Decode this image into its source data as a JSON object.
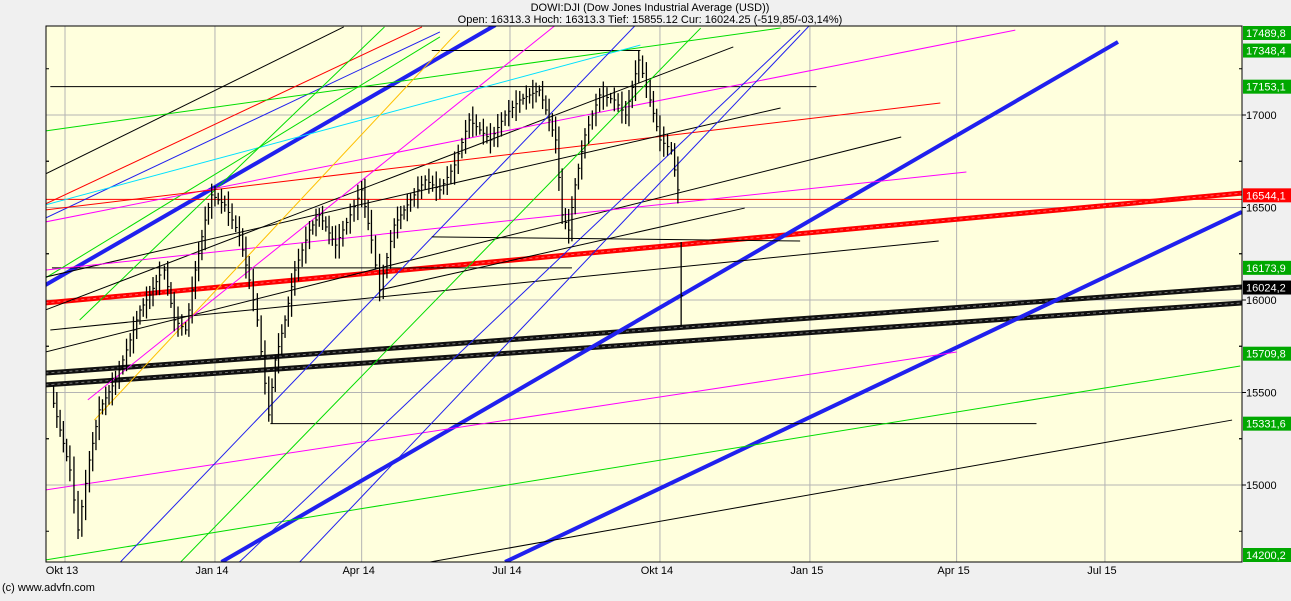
{
  "header": {
    "title": "DOWI:DJI (Dow Jones Industrial Average (USD))",
    "quote": "Open: 16313.3 Hoch: 16313.3 Tief: 15855.12 Cur: 16024.25 (-519,85/-03,14%)"
  },
  "footer": {
    "copyright": "(c) www.advfn.com"
  },
  "colors": {
    "background": "#f0f0f0",
    "plot": "#ffffdd",
    "grid": "#b4b4b4",
    "badge_green": "#00a800",
    "badge_red": "#ff0000",
    "badge_black": "#000000"
  },
  "chart_data": {
    "type": "ohlc",
    "title": "DOWI:DJI (Dow Jones Industrial Average (USD))",
    "ylim": [
      14584,
      17476
    ],
    "xlim": [
      "2013-09-19",
      "2015-09-23"
    ],
    "grid": true,
    "y_ticks": [
      15000,
      15500,
      16000,
      16500,
      17000
    ],
    "x_ticks": [
      {
        "date": "2013-10-01",
        "label": "Okt 13"
      },
      {
        "date": "2014-01-01",
        "label": "Jan 14"
      },
      {
        "date": "2014-04-01",
        "label": "Apr 14"
      },
      {
        "date": "2014-07-01",
        "label": "Jul 14"
      },
      {
        "date": "2014-10-01",
        "label": "Okt 14"
      },
      {
        "date": "2015-01-01",
        "label": "Jan 15"
      },
      {
        "date": "2015-04-01",
        "label": "Apr 15"
      },
      {
        "date": "2015-07-01",
        "label": "Jul 15"
      }
    ],
    "last_bar": {
      "date": "2014-10-14",
      "open": 16313.3,
      "high": 16313.3,
      "low": 15855.12,
      "close": 16024.25,
      "change": "-519,85",
      "change_pct": "-03,14%"
    },
    "closes": [
      [
        "2013-09-22",
        15514
      ],
      [
        "2013-09-28",
        15297
      ],
      [
        "2013-10-04",
        15081
      ],
      [
        "2013-10-09",
        14757
      ],
      [
        "2013-10-16",
        15135
      ],
      [
        "2013-10-22",
        15406
      ],
      [
        "2013-11-01",
        15568
      ],
      [
        "2013-11-10",
        15784
      ],
      [
        "2013-11-16",
        15946
      ],
      [
        "2013-11-22",
        16027
      ],
      [
        "2013-11-28",
        16135
      ],
      [
        "2013-12-01",
        16162
      ],
      [
        "2013-12-07",
        15892
      ],
      [
        "2013-12-14",
        15838
      ],
      [
        "2013-12-20",
        16162
      ],
      [
        "2013-12-26",
        16432
      ],
      [
        "2013-12-30",
        16568
      ],
      [
        "2014-01-07",
        16514
      ],
      [
        "2014-01-16",
        16351
      ],
      [
        "2014-01-22",
        16108
      ],
      [
        "2014-01-27",
        15892
      ],
      [
        "2014-02-03",
        15379
      ],
      [
        "2014-02-07",
        15676
      ],
      [
        "2014-02-13",
        15892
      ],
      [
        "2014-02-19",
        16162
      ],
      [
        "2014-02-28",
        16378
      ],
      [
        "2014-03-06",
        16460
      ],
      [
        "2014-03-16",
        16297
      ],
      [
        "2014-03-25",
        16460
      ],
      [
        "2014-04-01",
        16595
      ],
      [
        "2014-04-07",
        16324
      ],
      [
        "2014-04-12",
        16054
      ],
      [
        "2014-04-21",
        16405
      ],
      [
        "2014-05-01",
        16541
      ],
      [
        "2014-05-10",
        16649
      ],
      [
        "2014-05-19",
        16595
      ],
      [
        "2014-05-28",
        16730
      ],
      [
        "2014-06-06",
        16973
      ],
      [
        "2014-06-19",
        16865
      ],
      [
        "2014-06-28",
        17000
      ],
      [
        "2014-07-07",
        17081
      ],
      [
        "2014-07-19",
        17135
      ],
      [
        "2014-07-29",
        16865
      ],
      [
        "2014-08-02",
        16460
      ],
      [
        "2014-08-06",
        16378
      ],
      [
        "2014-08-10",
        16622
      ],
      [
        "2014-08-16",
        16892
      ],
      [
        "2014-08-25",
        17108
      ],
      [
        "2014-09-03",
        17081
      ],
      [
        "2014-09-10",
        17000
      ],
      [
        "2014-09-18",
        17297
      ],
      [
        "2014-09-25",
        17081
      ],
      [
        "2014-10-01",
        16865
      ],
      [
        "2014-10-08",
        16811
      ],
      [
        "2014-10-12",
        16595
      ],
      [
        "2014-10-14",
        16024
      ]
    ],
    "trend_lines": [
      {
        "color": "#ff0000",
        "width": 5,
        "from": [
          "2013-09-19",
          15984
        ],
        "to": [
          "2015-09-23",
          16578
        ]
      },
      {
        "color": "#111111",
        "width": 5,
        "from": [
          "2013-09-19",
          15605
        ],
        "to": [
          "2015-09-23",
          16070
        ]
      },
      {
        "color": "#111111",
        "width": 5,
        "from": [
          "2013-09-19",
          15541
        ],
        "to": [
          "2015-09-23",
          15984
        ]
      },
      {
        "color": "#2020ee",
        "width": 4,
        "from": [
          "2013-09-19",
          16081
        ],
        "to": [
          "2014-06-22",
          17486
        ]
      },
      {
        "color": "#2020ee",
        "width": 4,
        "from": [
          "2014-01-05",
          14584
        ],
        "to": [
          "2015-07-09",
          17395
        ]
      },
      {
        "color": "#2020ee",
        "width": 4,
        "from": [
          "2014-06-28",
          14584
        ],
        "to": [
          "2015-09-23",
          16476
        ]
      },
      {
        "color": "#ff0000",
        "width": 1,
        "from": [
          "2013-09-19",
          16544.1
        ],
        "to": [
          "2015-09-23",
          16544.1
        ]
      },
      {
        "color": "#000000",
        "width": 1,
        "from": [
          "2013-09-22",
          17153.1
        ],
        "to": [
          "2015-01-05",
          17153.1
        ]
      },
      {
        "color": "#000000",
        "width": 1,
        "from": [
          "2014-05-14",
          17348.4
        ],
        "to": [
          "2014-09-19",
          17348.4
        ]
      },
      {
        "color": "#000000",
        "width": 1,
        "from": [
          "2013-09-23",
          16173.9
        ],
        "to": [
          "2014-08-08",
          16173.9
        ]
      },
      {
        "color": "#000000",
        "width": 1,
        "from": [
          "2014-02-04",
          15331.6
        ],
        "to": [
          "2015-05-20",
          15331.6
        ]
      },
      {
        "color": "#000000",
        "width": 1,
        "from": [
          "2013-09-19",
          16681
        ],
        "to": [
          "2014-03-21",
          17476
        ]
      },
      {
        "color": "#ff0000",
        "width": 1,
        "from": [
          "2013-09-19",
          16519
        ],
        "to": [
          "2014-05-08",
          17476
        ]
      },
      {
        "color": "#2020ee",
        "width": 1,
        "from": [
          "2013-09-19",
          16443
        ],
        "to": [
          "2014-05-19",
          17449
        ]
      },
      {
        "color": "#00dd00",
        "width": 1,
        "from": [
          "2013-09-19",
          16914
        ],
        "to": [
          "2014-12-14",
          17470
        ]
      },
      {
        "color": "#00e0ff",
        "width": 1,
        "from": [
          "2013-09-19",
          16514
        ],
        "to": [
          "2014-09-19",
          17378
        ]
      },
      {
        "color": "#00dd00",
        "width": 1,
        "from": [
          "2013-10-10",
          15892
        ],
        "to": [
          "2014-04-15",
          17476
        ]
      },
      {
        "color": "#00dd00",
        "width": 1,
        "from": [
          "2013-09-19",
          16119
        ],
        "to": [
          "2014-05-19",
          17422
        ]
      },
      {
        "color": "#000000",
        "width": 1,
        "from": [
          "2013-09-19",
          15946
        ],
        "to": [
          "2014-11-15",
          17368
        ]
      },
      {
        "color": "#ff00ff",
        "width": 1,
        "from": [
          "2013-09-19",
          16422
        ],
        "to": [
          "2015-05-07",
          17459
        ]
      },
      {
        "color": "#ff0000",
        "width": 1,
        "from": [
          "2013-09-19",
          16487
        ],
        "to": [
          "2015-03-22",
          17065
        ]
      },
      {
        "color": "#000000",
        "width": 1,
        "from": [
          "2013-09-19",
          16124
        ],
        "to": [
          "2014-12-14",
          17038
        ]
      },
      {
        "color": "#000000",
        "width": 1,
        "from": [
          "2013-09-19",
          15719
        ],
        "to": [
          "2015-02-26",
          16881
        ]
      },
      {
        "color": "#ff00ff",
        "width": 1,
        "from": [
          "2013-09-19",
          16162
        ],
        "to": [
          "2015-04-07",
          16692
        ]
      },
      {
        "color": "#000000",
        "width": 1,
        "from": [
          "2013-09-22",
          15838
        ],
        "to": [
          "2015-03-21",
          16319
        ]
      },
      {
        "color": "#ff00ff",
        "width": 1,
        "from": [
          "2013-09-19",
          14973
        ],
        "to": [
          "2015-04-01",
          15719
        ]
      },
      {
        "color": "#00dd00",
        "width": 1,
        "from": [
          "2013-09-19",
          14595
        ],
        "to": [
          "2015-09-22",
          15643
        ]
      },
      {
        "color": "#000000",
        "width": 1,
        "from": [
          "2014-05-13",
          14584
        ],
        "to": [
          "2015-09-17",
          15351
        ]
      },
      {
        "color": "#2020ee",
        "width": 1,
        "from": [
          "2013-11-04",
          14584
        ],
        "to": [
          "2014-09-19",
          17513
        ]
      },
      {
        "color": "#2020ee",
        "width": 1,
        "from": [
          "2014-01-16",
          14584
        ],
        "to": [
          "2014-12-26",
          17459
        ]
      },
      {
        "color": "#2020ee",
        "width": 1,
        "from": [
          "2014-02-22",
          14584
        ],
        "to": [
          "2015-01-01",
          17486
        ]
      },
      {
        "color": "#ffc000",
        "width": 1,
        "from": [
          "2013-10-19",
          15351
        ],
        "to": [
          "2014-05-31",
          17459
        ]
      },
      {
        "color": "#ff00ff",
        "width": 1,
        "from": [
          "2013-10-15",
          15460
        ],
        "to": [
          "2014-07-29",
          17486
        ]
      },
      {
        "color": "#00dd00",
        "width": 1,
        "from": [
          "2013-12-11",
          14584
        ],
        "to": [
          "2014-10-26",
          17470
        ]
      },
      {
        "color": "#000000",
        "width": 1,
        "from": [
          "2014-04-12",
          16054
        ],
        "to": [
          "2014-11-22",
          16497
        ]
      },
      {
        "color": "#000000",
        "width": 1,
        "from": [
          "2014-05-14",
          16341
        ],
        "to": [
          "2014-12-26",
          16319
        ]
      }
    ],
    "price_badges": [
      {
        "value": "17489,8",
        "price": 17489.8,
        "kind": "green"
      },
      {
        "value": "17348,4",
        "price": 17348.4,
        "kind": "green"
      },
      {
        "value": "17153,1",
        "price": 17153.1,
        "kind": "green"
      },
      {
        "value": "16544,1",
        "price": 16544.1,
        "kind": "red"
      },
      {
        "value": "16173,9",
        "price": 16173.9,
        "kind": "green"
      },
      {
        "value": "16024,2",
        "price": 16024.2,
        "kind": "black"
      },
      {
        "value": "15709,8",
        "price": 15709.8,
        "kind": "green"
      },
      {
        "value": "15331,6",
        "price": 15331.6,
        "kind": "green"
      },
      {
        "value": "14200,2",
        "price": 14200.2,
        "kind": "green"
      }
    ]
  }
}
